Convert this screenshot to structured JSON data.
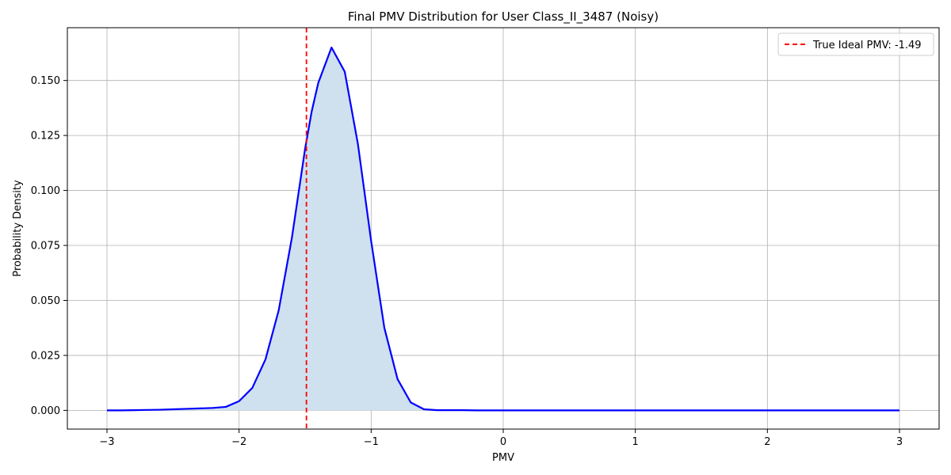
{
  "chart_data": {
    "type": "line",
    "title": "Final PMV Distribution for User Class_II_3487 (Noisy)",
    "xlabel": "PMV",
    "ylabel": "Probability Density",
    "xlim": [
      -3.3,
      3.3
    ],
    "ylim": [
      -0.0085,
      0.174
    ],
    "xticks": [
      -3,
      -2,
      -1,
      0,
      1,
      2,
      3
    ],
    "xtick_labels": [
      "−3",
      "−2",
      "−1",
      "0",
      "1",
      "2",
      "3"
    ],
    "yticks": [
      0.0,
      0.025,
      0.05,
      0.075,
      0.1,
      0.125,
      0.15
    ],
    "ytick_labels": [
      "0.000",
      "0.025",
      "0.050",
      "0.075",
      "0.100",
      "0.125",
      "0.150"
    ],
    "grid": true,
    "legend_position": "top-right",
    "series": [
      {
        "color": "#0000ff",
        "fill_color": "#cfe0ee",
        "x": [
          -3.0,
          -2.9,
          -2.8,
          -2.7,
          -2.6,
          -2.5,
          -2.4,
          -2.3,
          -2.2,
          -2.1,
          -2.0,
          -1.9,
          -1.8,
          -1.7,
          -1.6,
          -1.5,
          -1.45,
          -1.4,
          -1.3,
          -1.2,
          -1.1,
          -1.0,
          -0.9,
          -0.8,
          -0.7,
          -0.6,
          -0.5,
          -0.4,
          -0.3,
          -0.2,
          -0.1,
          0.0,
          0.5,
          1.0,
          1.5,
          2.0,
          2.5,
          3.0
        ],
        "y": [
          0.0,
          0.0,
          0.0001,
          0.0002,
          0.0003,
          0.0005,
          0.0007,
          0.0009,
          0.0011,
          0.0016,
          0.0042,
          0.0102,
          0.0232,
          0.0455,
          0.0785,
          0.119,
          0.136,
          0.149,
          0.165,
          0.154,
          0.121,
          0.077,
          0.0375,
          0.0142,
          0.0036,
          0.0005,
          0.0001,
          0.0001,
          0.0001,
          0.0,
          0.0,
          0.0,
          0.0,
          0.0,
          0.0,
          0.0,
          0.0,
          0.0
        ]
      }
    ],
    "reference_line": {
      "x": -1.49,
      "color": "#ff0000",
      "label": "True Ideal PMV: -1.49"
    }
  }
}
